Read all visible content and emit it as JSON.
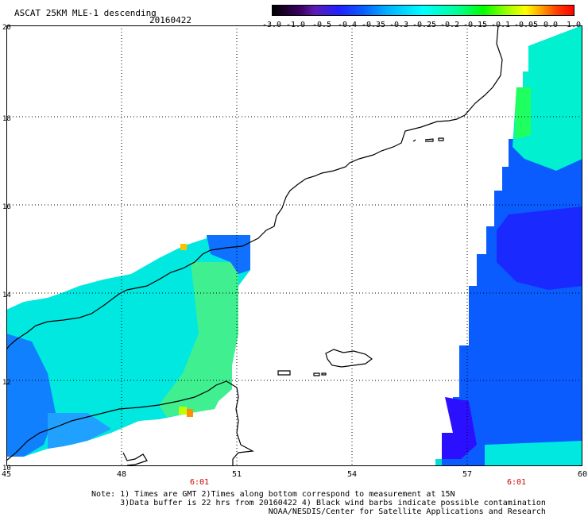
{
  "title": "ASCAT 25KM MLE-1 descending",
  "date": "20160422",
  "colorbar": {
    "labels": [
      "-3.0",
      "-1.0",
      "-0.5",
      "-0.4",
      "-0.35",
      "-0.3",
      "-0.25",
      "-0.2",
      "-0.15",
      "-0.1",
      "-0.05",
      "0.0",
      "1.0"
    ]
  },
  "lat_labels": [
    "20",
    "18",
    "16",
    "14",
    "12",
    "10"
  ],
  "lon_labels": [
    "45",
    "48",
    "51",
    "54",
    "57",
    "60"
  ],
  "time_labels": [
    "6:01",
    "6:01"
  ],
  "notes": [
    "Note: 1) Times are GMT 2)Times along bottom correspond to measurement at 15N",
    "      3)Data buffer is 22 hrs from 20160422 4) Black wind barbs indicate possible contamination",
    "                                     NOAA/NESDIS/Center for Satellite Applications and Research"
  ],
  "colors": {
    "cyan": "#00ffff",
    "teal": "#00e8d0",
    "green": "#00ff40",
    "blue": "#0050ff",
    "deepblue": "#1a00ff",
    "orange": "#ffa000"
  }
}
